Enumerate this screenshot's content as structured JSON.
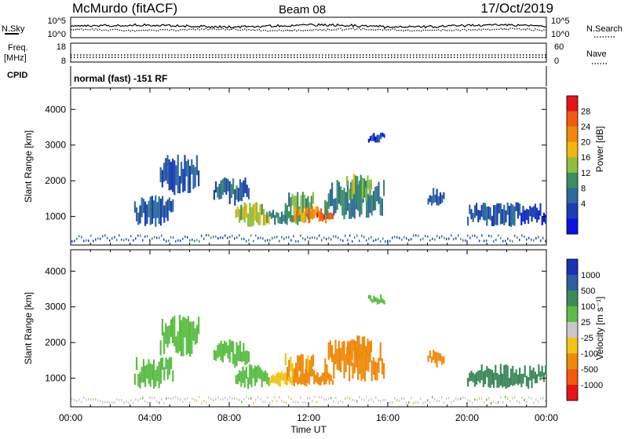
{
  "header": {
    "station": "McMurdo (fitACF)",
    "beam": "Beam 08",
    "date": "17/Oct/2019"
  },
  "noise_panel": {
    "left_label": "N.Sky",
    "right_label": "N.Search",
    "tick_top": "10^5",
    "tick_bottom": "10^0"
  },
  "freq_panel": {
    "left_label_1": "Freq.",
    "left_label_2": "[MHz]",
    "left_ticks": [
      "18",
      "8"
    ],
    "right_label": "Nave",
    "right_ticks": [
      "60",
      "0"
    ]
  },
  "cpid_panel": {
    "label": "CPID",
    "text": "normal (fast) -151 RF"
  },
  "x_axis": {
    "title": "Time UT",
    "ticks": [
      "00:00",
      "04:00",
      "08:00",
      "12:00",
      "16:00",
      "20:00",
      "00:00"
    ]
  },
  "chart_data": [
    {
      "type": "heatmap",
      "name": "power",
      "ylabel": "Slant Range [km]",
      "yticks": [
        1000,
        2000,
        3000,
        4000
      ],
      "ylim": [
        200,
        4600
      ],
      "xlim_hours": [
        0,
        24
      ],
      "colorbar": {
        "label": "Power [dB]",
        "ticks": [
          "28",
          "24",
          "20",
          "16",
          "12",
          "8",
          "4"
        ],
        "colors": [
          "#e8141b",
          "#f25a0f",
          "#f08a0c",
          "#f0b613",
          "#8fbf3c",
          "#3b8f62",
          "#2e6b9c",
          "#1b3fb3",
          "#0a14e0"
        ]
      },
      "echo_regions": [
        {
          "t": [
            3.2,
            5.2
          ],
          "r": [
            700,
            1600
          ],
          "value": 9
        },
        {
          "t": [
            4.5,
            6.5
          ],
          "r": [
            1600,
            2800
          ],
          "value": 8
        },
        {
          "t": [
            7.2,
            9.0
          ],
          "r": [
            1300,
            2100
          ],
          "value": 9
        },
        {
          "t": [
            8.3,
            10.0
          ],
          "r": [
            700,
            1400
          ],
          "value": 18
        },
        {
          "t": [
            10.0,
            11.2
          ],
          "r": [
            750,
            1200
          ],
          "value": 13
        },
        {
          "t": [
            10.8,
            12.2
          ],
          "r": [
            750,
            1700
          ],
          "value": 14
        },
        {
          "t": [
            11.2,
            12.6
          ],
          "r": [
            800,
            1300
          ],
          "value": 27
        },
        {
          "t": [
            12.4,
            13.2
          ],
          "r": [
            800,
            1200
          ],
          "value": 29
        },
        {
          "t": [
            12.8,
            15.8
          ],
          "r": [
            900,
            2100
          ],
          "value": 12
        },
        {
          "t": [
            13.9,
            15.2
          ],
          "r": [
            1400,
            2200
          ],
          "value": 17
        },
        {
          "t": [
            18.0,
            18.8
          ],
          "r": [
            1300,
            1800
          ],
          "value": 8
        },
        {
          "t": [
            20.0,
            24.0
          ],
          "r": [
            700,
            1400
          ],
          "value": 7
        },
        {
          "t": [
            15.0,
            15.8
          ],
          "r": [
            3050,
            3350
          ],
          "value": 6
        }
      ]
    },
    {
      "type": "heatmap",
      "name": "velocity",
      "ylabel": "Slant Range [km]",
      "yticks": [
        1000,
        2000,
        3000,
        4000
      ],
      "ylim": [
        200,
        4600
      ],
      "xlim_hours": [
        0,
        24
      ],
      "colorbar": {
        "label": "Velocity [m s⁻¹]",
        "ticks": [
          "1000",
          "500",
          "100",
          "25",
          "-25",
          "-100",
          "-500",
          "-1000"
        ],
        "colors": [
          "#1932b8",
          "#2e5fa0",
          "#3f8a5c",
          "#5cbe45",
          "#c8c8c8",
          "#f2c416",
          "#f08a0c",
          "#f25a0f",
          "#e8141b"
        ]
      },
      "echo_regions": [
        {
          "t": [
            3.2,
            5.2
          ],
          "r": [
            700,
            1600
          ],
          "value": 60
        },
        {
          "t": [
            4.5,
            6.5
          ],
          "r": [
            1600,
            2800
          ],
          "value": 60
        },
        {
          "t": [
            7.2,
            9.0
          ],
          "r": [
            1300,
            2100
          ],
          "value": 60
        },
        {
          "t": [
            8.3,
            10.0
          ],
          "r": [
            700,
            1400
          ],
          "value": 55
        },
        {
          "t": [
            10.0,
            11.2
          ],
          "r": [
            750,
            1200
          ],
          "value": -60
        },
        {
          "t": [
            10.8,
            12.2
          ],
          "r": [
            750,
            1700
          ],
          "value": -110
        },
        {
          "t": [
            11.2,
            12.6
          ],
          "r": [
            800,
            1300
          ],
          "value": -150
        },
        {
          "t": [
            12.4,
            13.2
          ],
          "r": [
            800,
            1200
          ],
          "value": -150
        },
        {
          "t": [
            12.8,
            15.8
          ],
          "r": [
            900,
            2100
          ],
          "value": -200
        },
        {
          "t": [
            13.9,
            15.2
          ],
          "r": [
            1400,
            2200
          ],
          "value": -250
        },
        {
          "t": [
            18.0,
            18.8
          ],
          "r": [
            1300,
            1800
          ],
          "value": -150
        },
        {
          "t": [
            20.0,
            24.0
          ],
          "r": [
            700,
            1400
          ],
          "value": 300
        },
        {
          "t": [
            15.0,
            15.8
          ],
          "r": [
            3050,
            3350
          ],
          "value": 40
        }
      ]
    }
  ]
}
